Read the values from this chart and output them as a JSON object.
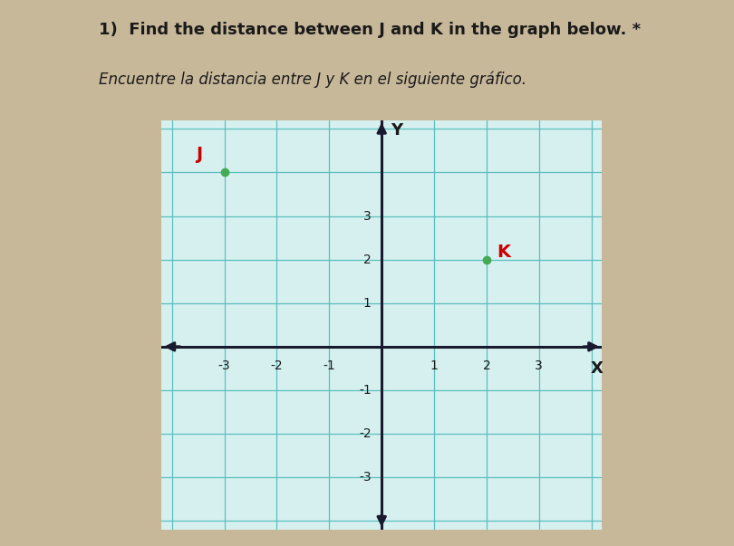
{
  "title_line1": "1)  Find the distance between J and K in the graph below. *",
  "title_line2": "Encuentre la distancia entre J y K en el siguiente gráfico.",
  "page_background": "#c8b89a",
  "card_background": "#f0ece4",
  "grid_background": "#d6f0f0",
  "grid_color": "#5bbfbf",
  "axis_color": "#1a1a2e",
  "point_J": [
    -3,
    4
  ],
  "point_K": [
    2,
    2
  ],
  "point_color_J": "#44aa55",
  "point_color_K": "#44aa55",
  "label_J_color": "#cc0000",
  "label_K_color": "#cc0000",
  "xlim": [
    -4.2,
    4.2
  ],
  "ylim": [
    -4.2,
    5.2
  ],
  "x_ticks": [
    -3,
    -2,
    -1,
    1,
    2,
    3
  ],
  "y_ticks": [
    -3,
    -2,
    -1,
    1,
    2,
    3
  ],
  "tick_fontsize": 10,
  "label_fontsize": 13,
  "point_label_fontsize": 14,
  "grid_linewidth": 0.9,
  "axis_linewidth": 2.2,
  "title1_fontsize": 13,
  "title2_fontsize": 12
}
